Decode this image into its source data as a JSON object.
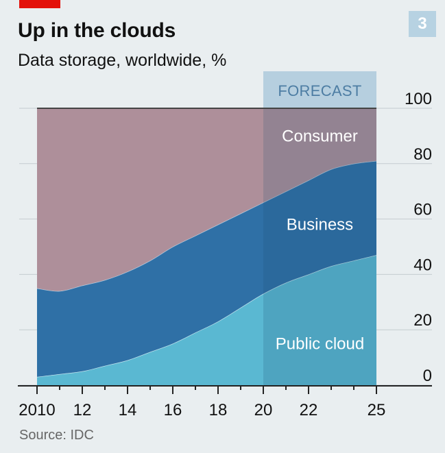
{
  "header": {
    "title": "Up in the clouds",
    "subtitle": "Data storage, worldwide, %",
    "chart_number": "3"
  },
  "footer": {
    "source": "Source: IDC"
  },
  "colors": {
    "brand_red": "#e3120b",
    "chart_number_bg": "#b7d2e2",
    "consumer": "#ae8f9a",
    "business": "#2f70a6",
    "public_cloud": "#5ab8d2",
    "forecast_band": "#b6cfdf",
    "forecast_text": "#4d7da3",
    "axis": "#222222",
    "grid": "#c4cbd0"
  },
  "chart_data": {
    "type": "area",
    "stacked": true,
    "x": [
      2010,
      2011,
      2012,
      2013,
      2014,
      2015,
      2016,
      2017,
      2018,
      2019,
      2020,
      2021,
      2022,
      2023,
      2024,
      2025
    ],
    "series": [
      {
        "name": "Public cloud",
        "values": [
          3,
          4,
          5,
          7,
          9,
          12,
          15,
          19,
          23,
          28,
          33,
          37,
          40,
          43,
          45,
          47
        ]
      },
      {
        "name": "Business",
        "values": [
          32,
          30,
          31,
          31,
          32,
          33,
          35,
          35,
          35,
          34,
          33,
          33,
          34,
          35,
          35,
          34
        ]
      },
      {
        "name": "Consumer",
        "values": [
          65,
          66,
          64,
          62,
          59,
          55,
          50,
          46,
          42,
          38,
          34,
          30,
          26,
          22,
          20,
          19
        ]
      }
    ],
    "forecast": {
      "label": "FORECAST",
      "from": 2020,
      "to": 2025
    },
    "x_ticks": [
      2010,
      2011,
      2012,
      2013,
      2014,
      2015,
      2016,
      2017,
      2018,
      2019,
      2020,
      2021,
      2022,
      2023,
      2024,
      2025
    ],
    "x_tick_labels": [
      {
        "x": 2010,
        "label": "2010"
      },
      {
        "x": 2012,
        "label": "12"
      },
      {
        "x": 2014,
        "label": "14"
      },
      {
        "x": 2016,
        "label": "16"
      },
      {
        "x": 2018,
        "label": "18"
      },
      {
        "x": 2020,
        "label": "20"
      },
      {
        "x": 2022,
        "label": "22"
      },
      {
        "x": 2025,
        "label": "25"
      }
    ],
    "y_ticks": [
      0,
      20,
      40,
      60,
      80,
      100
    ],
    "ylim": [
      0,
      100
    ],
    "xlim": [
      2010,
      2025
    ],
    "y_axis_position": "right",
    "grid": true,
    "area_labels": [
      {
        "text": "Consumer",
        "x": 2022.5,
        "y": 90
      },
      {
        "text": "Business",
        "x": 2022.5,
        "y": 58
      },
      {
        "text": "Public cloud",
        "x": 2022.5,
        "y": 15
      }
    ],
    "title": "Up in the clouds",
    "subtitle": "Data storage, worldwide, %",
    "xlabel": "",
    "ylabel": ""
  }
}
